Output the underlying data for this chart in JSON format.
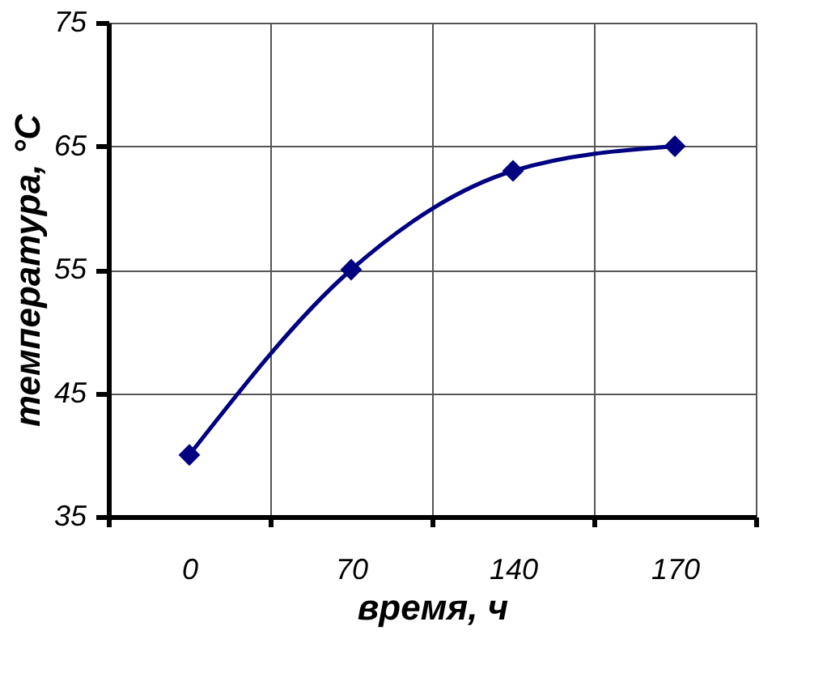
{
  "chart_data": {
    "type": "line",
    "xlabel": "время,  ч",
    "ylabel": "температура,  °С",
    "categories": [
      "0",
      "70",
      "140",
      "170"
    ],
    "series": [
      {
        "color": "#000080",
        "values": [
          40,
          55,
          63,
          65
        ]
      }
    ],
    "ylim": [
      35,
      75
    ],
    "yticks": [
      35,
      45,
      55,
      65,
      75
    ],
    "grid": true,
    "marker": "diamond",
    "line_style": "solid"
  }
}
